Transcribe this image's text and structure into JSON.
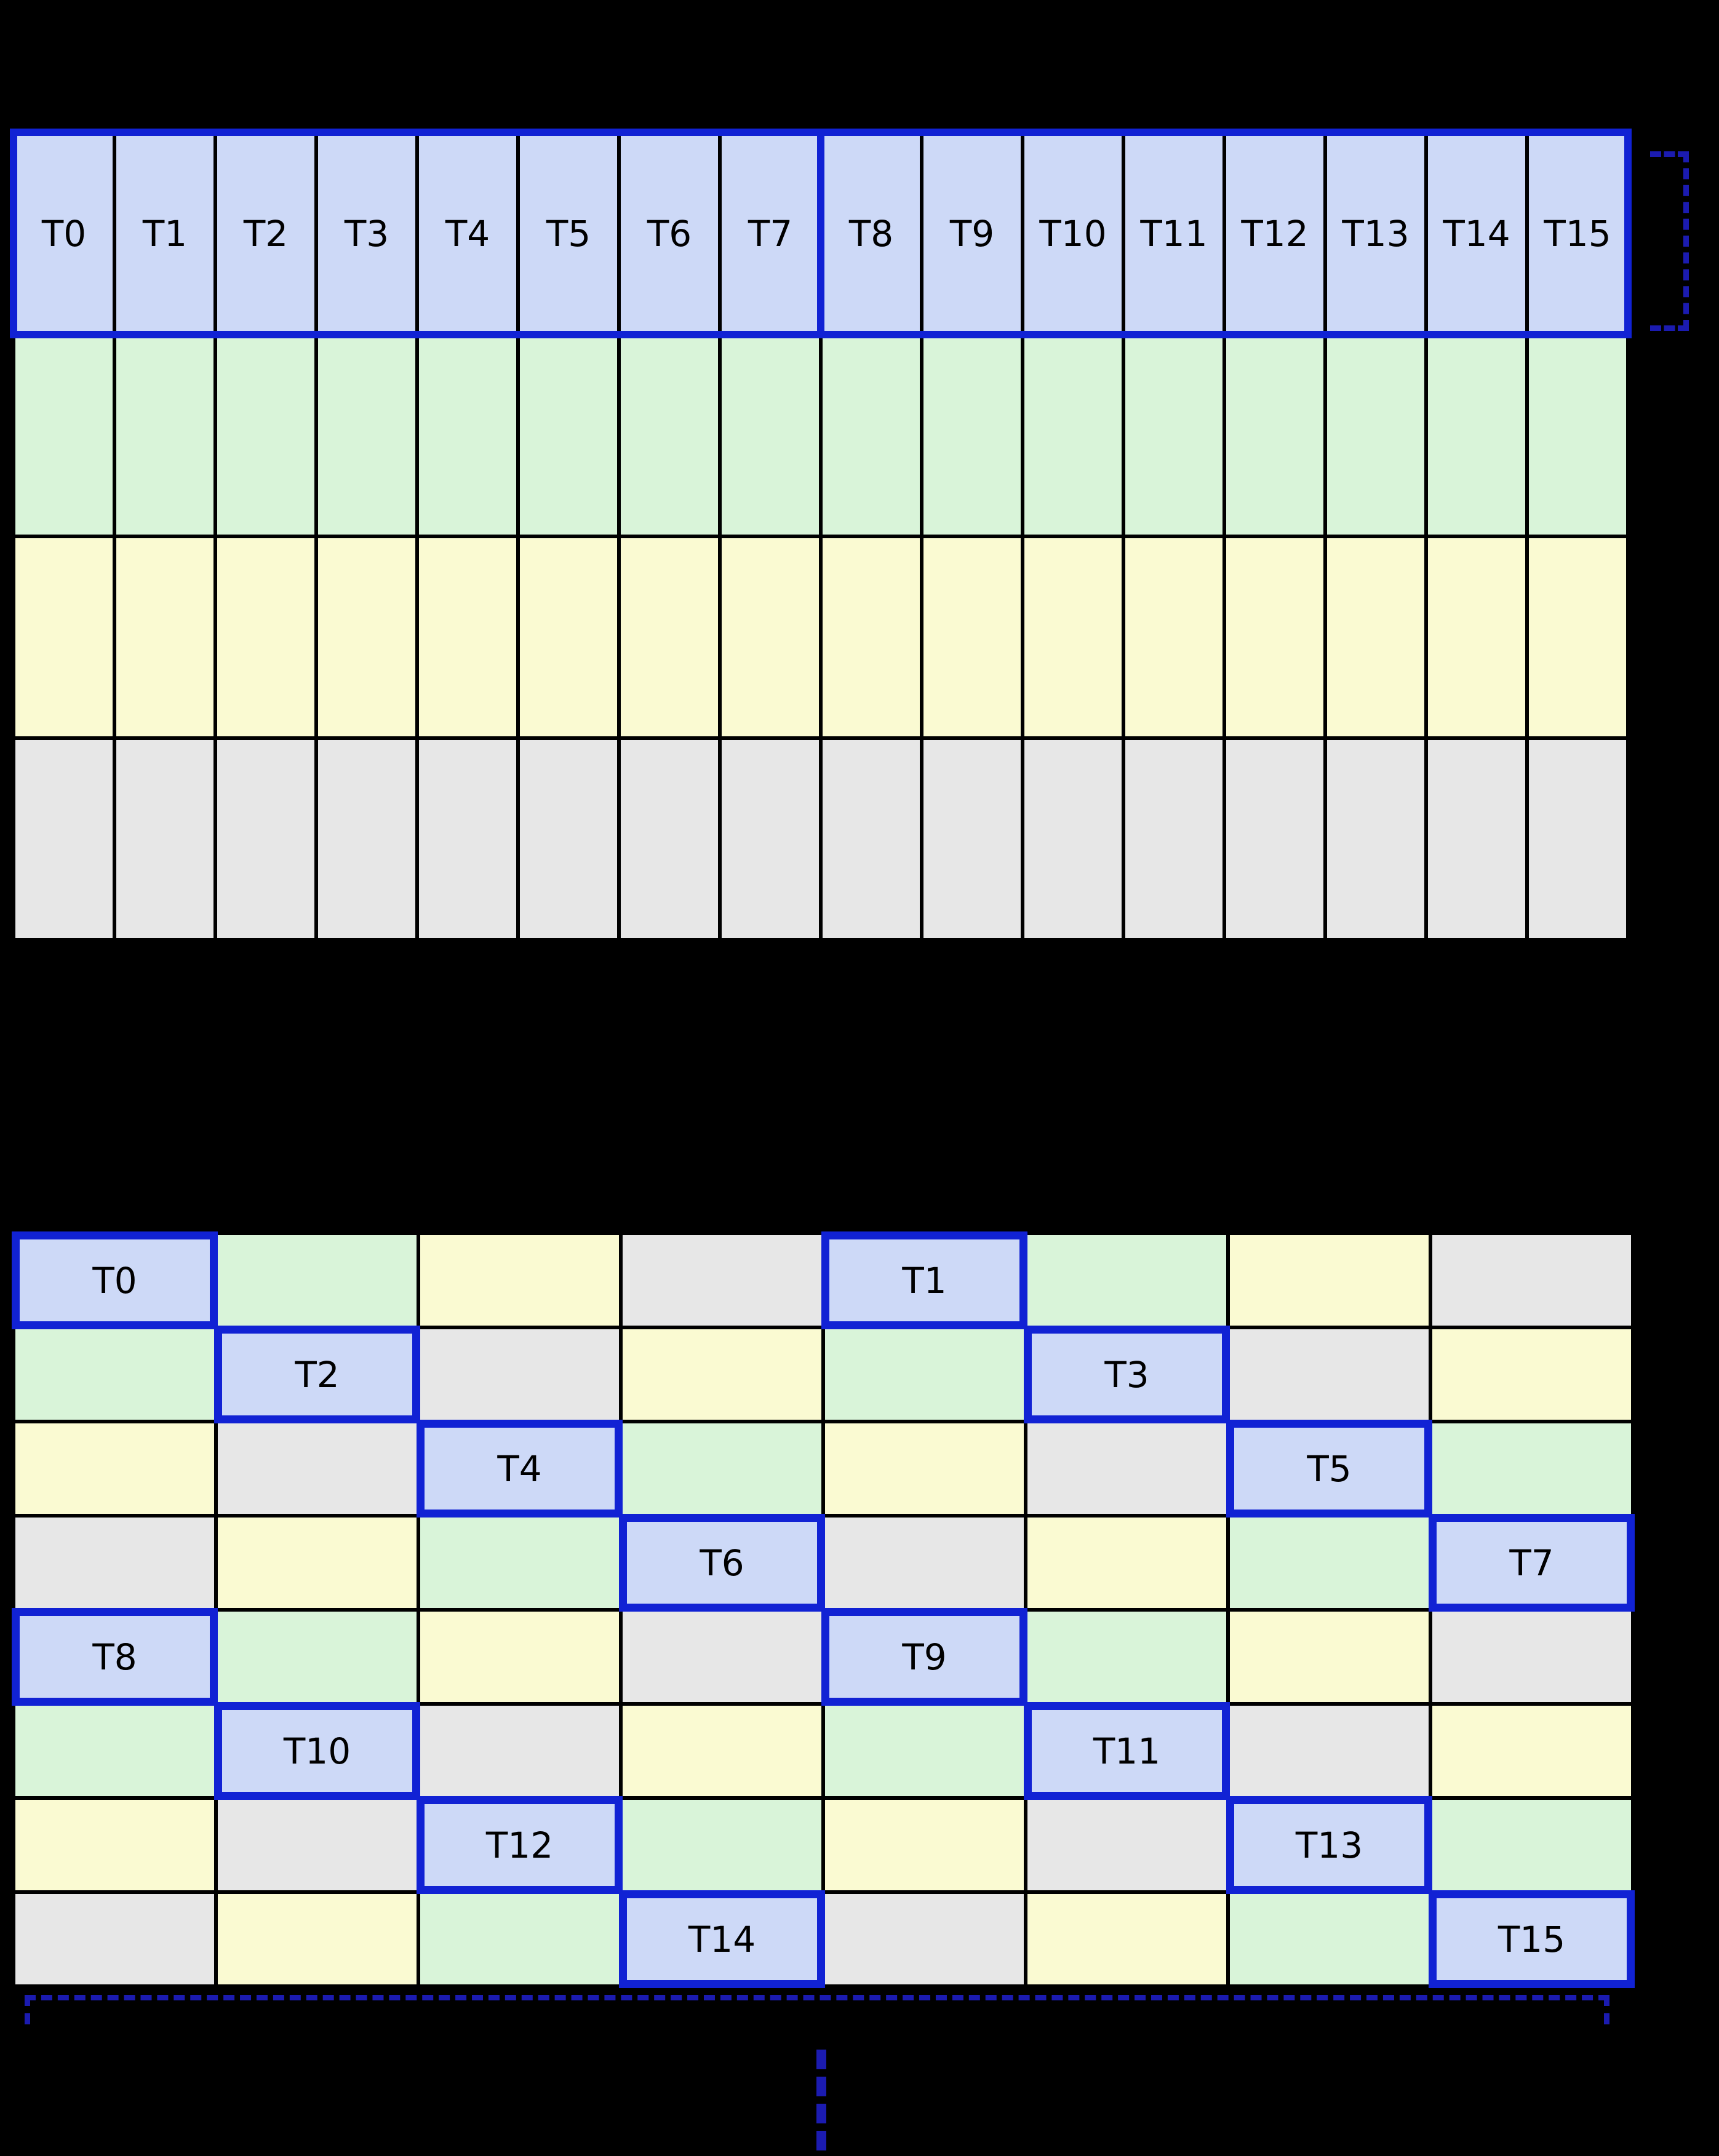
{
  "colors": {
    "bg": "#000000",
    "cell_thread": "#cdd9f7",
    "cell_green": "#d9f4d9",
    "cell_yellow": "#fafad2",
    "cell_gray": "#e7e7e7",
    "cell_border": "#000000",
    "accent": "#1122d4",
    "bracket": "#1b1bb0"
  },
  "top_grid": {
    "columns": 16,
    "thread_labels": [
      "T0",
      "T1",
      "T2",
      "T3",
      "T4",
      "T5",
      "T6",
      "T7",
      "T8",
      "T9",
      "T10",
      "T11",
      "T12",
      "T13",
      "T14",
      "T15"
    ],
    "body_rows": [
      "green",
      "yellow",
      "gray"
    ],
    "highlight_groups": 2
  },
  "bottom_grid": {
    "columns": 8,
    "rows": [
      [
        {
          "c": "thread",
          "t": "T0"
        },
        {
          "c": "green"
        },
        {
          "c": "yellow"
        },
        {
          "c": "gray"
        },
        {
          "c": "thread",
          "t": "T1"
        },
        {
          "c": "green"
        },
        {
          "c": "yellow"
        },
        {
          "c": "gray"
        }
      ],
      [
        {
          "c": "green"
        },
        {
          "c": "thread",
          "t": "T2"
        },
        {
          "c": "gray"
        },
        {
          "c": "yellow"
        },
        {
          "c": "green"
        },
        {
          "c": "thread",
          "t": "T3"
        },
        {
          "c": "gray"
        },
        {
          "c": "yellow"
        }
      ],
      [
        {
          "c": "yellow"
        },
        {
          "c": "gray"
        },
        {
          "c": "thread",
          "t": "T4"
        },
        {
          "c": "green"
        },
        {
          "c": "yellow"
        },
        {
          "c": "gray"
        },
        {
          "c": "thread",
          "t": "T5"
        },
        {
          "c": "green"
        }
      ],
      [
        {
          "c": "gray"
        },
        {
          "c": "yellow"
        },
        {
          "c": "green"
        },
        {
          "c": "thread",
          "t": "T6"
        },
        {
          "c": "gray"
        },
        {
          "c": "yellow"
        },
        {
          "c": "green"
        },
        {
          "c": "thread",
          "t": "T7"
        }
      ],
      [
        {
          "c": "thread",
          "t": "T8"
        },
        {
          "c": "green"
        },
        {
          "c": "yellow"
        },
        {
          "c": "gray"
        },
        {
          "c": "thread",
          "t": "T9"
        },
        {
          "c": "green"
        },
        {
          "c": "yellow"
        },
        {
          "c": "gray"
        }
      ],
      [
        {
          "c": "green"
        },
        {
          "c": "thread",
          "t": "T10"
        },
        {
          "c": "gray"
        },
        {
          "c": "yellow"
        },
        {
          "c": "green"
        },
        {
          "c": "thread",
          "t": "T11"
        },
        {
          "c": "gray"
        },
        {
          "c": "yellow"
        }
      ],
      [
        {
          "c": "yellow"
        },
        {
          "c": "gray"
        },
        {
          "c": "thread",
          "t": "T12"
        },
        {
          "c": "green"
        },
        {
          "c": "yellow"
        },
        {
          "c": "gray"
        },
        {
          "c": "thread",
          "t": "T13"
        },
        {
          "c": "green"
        }
      ],
      [
        {
          "c": "gray"
        },
        {
          "c": "yellow"
        },
        {
          "c": "green"
        },
        {
          "c": "thread",
          "t": "T14"
        },
        {
          "c": "gray"
        },
        {
          "c": "yellow"
        },
        {
          "c": "green"
        },
        {
          "c": "thread",
          "t": "T15"
        }
      ]
    ]
  }
}
